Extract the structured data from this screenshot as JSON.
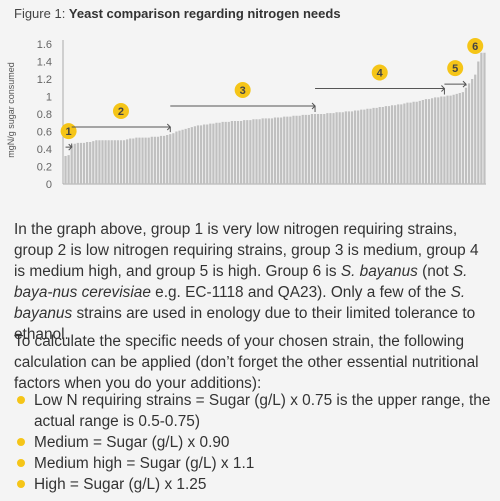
{
  "figure": {
    "prefix": "Figure 1: ",
    "title": "Yeast comparison regarding nitrogen needs"
  },
  "chart_data": {
    "type": "bar",
    "ylabel": "mgN/g sugar consumed",
    "xlabel": "",
    "ylim": [
      0,
      1.6
    ],
    "yticks": [
      "0",
      "0.2",
      "0.4",
      "0.6",
      "0.8",
      "1",
      "1.2",
      "1.4",
      "1.6"
    ],
    "bar_color": "#c0c0c0",
    "accent_color": "#f5c518",
    "values": [
      0.32,
      0.33,
      0.44,
      0.46,
      0.47,
      0.47,
      0.47,
      0.48,
      0.48,
      0.49,
      0.5,
      0.5,
      0.5,
      0.5,
      0.5,
      0.5,
      0.5,
      0.5,
      0.5,
      0.5,
      0.51,
      0.52,
      0.52,
      0.53,
      0.53,
      0.53,
      0.53,
      0.53,
      0.54,
      0.54,
      0.54,
      0.55,
      0.55,
      0.56,
      0.57,
      0.58,
      0.6,
      0.61,
      0.62,
      0.63,
      0.64,
      0.65,
      0.66,
      0.67,
      0.67,
      0.68,
      0.68,
      0.69,
      0.69,
      0.7,
      0.7,
      0.71,
      0.71,
      0.71,
      0.72,
      0.72,
      0.72,
      0.72,
      0.73,
      0.73,
      0.73,
      0.74,
      0.74,
      0.74,
      0.75,
      0.75,
      0.75,
      0.75,
      0.76,
      0.76,
      0.76,
      0.77,
      0.77,
      0.77,
      0.78,
      0.78,
      0.78,
      0.79,
      0.79,
      0.79,
      0.8,
      0.8,
      0.8,
      0.8,
      0.8,
      0.81,
      0.81,
      0.81,
      0.82,
      0.82,
      0.82,
      0.83,
      0.83,
      0.83,
      0.84,
      0.84,
      0.85,
      0.85,
      0.86,
      0.86,
      0.87,
      0.87,
      0.88,
      0.88,
      0.89,
      0.89,
      0.9,
      0.9,
      0.91,
      0.91,
      0.92,
      0.93,
      0.93,
      0.94,
      0.94,
      0.95,
      0.96,
      0.97,
      0.97,
      0.98,
      0.99,
      0.99,
      1.0,
      1.0,
      1.01,
      1.01,
      1.02,
      1.03,
      1.04,
      1.05,
      1.1,
      1.15,
      1.2,
      1.25,
      1.4,
      1.5,
      1.5
    ],
    "groups": [
      {
        "label": "1",
        "start": 0,
        "end": 2
      },
      {
        "label": "2",
        "start": 2,
        "end": 34
      },
      {
        "label": "3",
        "start": 34,
        "end": 81
      },
      {
        "label": "4",
        "start": 81,
        "end": 123
      },
      {
        "label": "5",
        "start": 123,
        "end": 130
      },
      {
        "label": "6",
        "start": 130,
        "end": 136
      }
    ]
  },
  "paragraphs": {
    "p1_a": "In the graph above, group 1 is very low nitrogen requiring strains, group 2 is low nitrogen requiring strains, group 3 is medium, group 4 is medium high, and group 5 is high. Group 6 is ",
    "p1_b": "S. bayanus",
    "p1_c": " (not ",
    "p1_d": "S. baya-nus cerevisiae",
    "p1_e": " e.g. EC-1118 and QA23). Only a few of the ",
    "p1_f": "S. bayanus",
    "p1_g": " strains are used in enology due to their limited tolerance to ethanol.",
    "p2": "To calculate the specific needs of your chosen strain, the following calculation can be applied (don’t forget the other essential nutritional factors when you do your additions):"
  },
  "bullets": [
    "Low N requiring strains = Sugar (g/L) x 0.75 is the upper range, the actual range is 0.5-0.75)",
    "Medium = Sugar (g/L) x 0.90",
    "Medium high = Sugar (g/L) x 1.1",
    "High = Sugar (g/L) x 1.25"
  ]
}
